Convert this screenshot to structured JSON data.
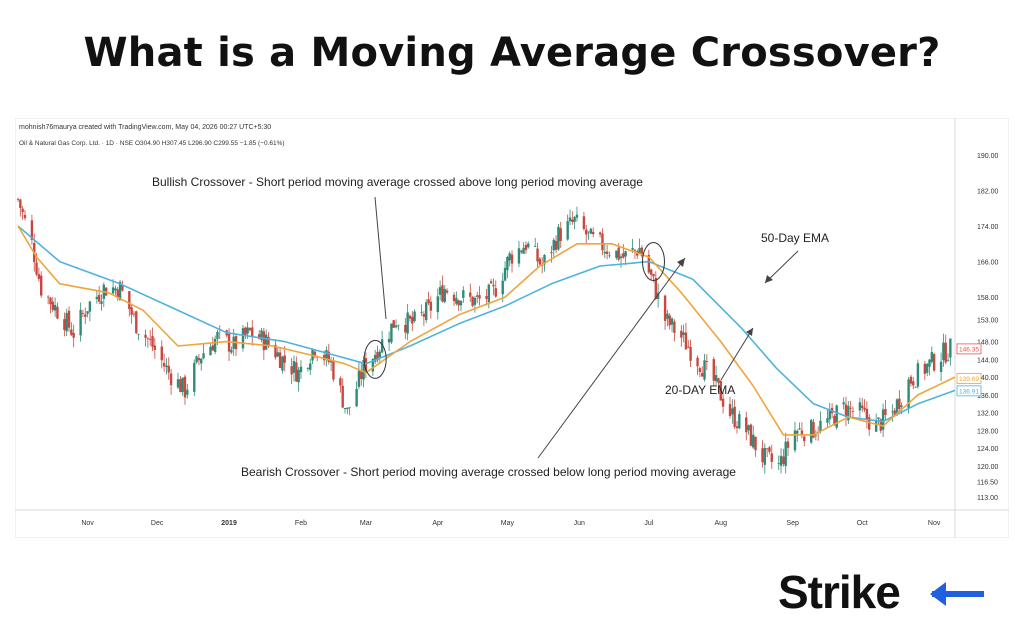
{
  "page": {
    "headline": "What is a Moving Average Crossover?"
  },
  "chart_data": {
    "type": "candlestick",
    "credit": "mohnish76maurya created with TradingView.com, May 04, 2026 00:27 UTC+5:30",
    "symbol_line": "Oil & Natural Gas Corp. Ltd. · 1D · NSE  O304.90  H307.45  L296.90  C299.55  −1.85 (−0.61%)",
    "ylim": [
      111,
      192
    ],
    "xlim": [
      "2018-10-02",
      "2019-11-10"
    ],
    "y_ticks": [
      190.0,
      182.0,
      174.0,
      166.0,
      158.0,
      153.0,
      148.0,
      144.0,
      140.0,
      136.0,
      132.0,
      128.0,
      124.0,
      120.0,
      116.5,
      113.0
    ],
    "y_tick_labels": [
      "190.00",
      "182.00",
      "174.00",
      "166.00",
      "158.00",
      "153.00",
      "148.00",
      "144.00",
      "140.00",
      "136.00",
      "132.00",
      "128.00",
      "124.00",
      "120.00",
      "116.50",
      "113.00"
    ],
    "x_tick_labels": [
      {
        "label": "Nov",
        "date": "2018-11-01",
        "bold": false
      },
      {
        "label": "Dec",
        "date": "2018-12-01",
        "bold": false
      },
      {
        "label": "2019",
        "date": "2019-01-01",
        "bold": true
      },
      {
        "label": "Feb",
        "date": "2019-02-01",
        "bold": false
      },
      {
        "label": "Mar",
        "date": "2019-03-01",
        "bold": false
      },
      {
        "label": "Apr",
        "date": "2019-04-01",
        "bold": false
      },
      {
        "label": "May",
        "date": "2019-05-01",
        "bold": false
      },
      {
        "label": "Jun",
        "date": "2019-06-01",
        "bold": false
      },
      {
        "label": "Jul",
        "date": "2019-07-01",
        "bold": false
      },
      {
        "label": "Aug",
        "date": "2019-08-01",
        "bold": false
      },
      {
        "label": "Sep",
        "date": "2019-09-01",
        "bold": false
      },
      {
        "label": "Oct",
        "date": "2019-10-01",
        "bold": false
      },
      {
        "label": "Nov",
        "date": "2019-11-01",
        "bold": false
      }
    ],
    "close_path": [
      [
        "2018-10-02",
        180
      ],
      [
        "2018-10-08",
        170
      ],
      [
        "2018-10-12",
        160
      ],
      [
        "2018-10-19",
        155
      ],
      [
        "2018-10-26",
        150
      ],
      [
        "2018-11-01",
        156
      ],
      [
        "2018-11-08",
        160
      ],
      [
        "2018-11-15",
        160
      ],
      [
        "2018-11-22",
        152
      ],
      [
        "2018-11-29",
        147
      ],
      [
        "2018-12-06",
        141
      ],
      [
        "2018-12-13",
        137
      ],
      [
        "2018-12-20",
        145
      ],
      [
        "2018-12-27",
        149
      ],
      [
        "2019-01-03",
        147
      ],
      [
        "2019-01-10",
        150
      ],
      [
        "2019-01-17",
        148
      ],
      [
        "2019-01-24",
        144
      ],
      [
        "2019-01-31",
        141
      ],
      [
        "2019-02-07",
        147
      ],
      [
        "2019-02-14",
        143
      ],
      [
        "2019-02-21",
        132
      ],
      [
        "2019-02-28",
        142
      ],
      [
        "2019-03-07",
        147
      ],
      [
        "2019-03-14",
        153
      ],
      [
        "2019-03-21",
        152
      ],
      [
        "2019-03-28",
        155
      ],
      [
        "2019-04-04",
        160
      ],
      [
        "2019-04-11",
        158
      ],
      [
        "2019-04-18",
        157
      ],
      [
        "2019-04-25",
        159
      ],
      [
        "2019-05-02",
        167
      ],
      [
        "2019-05-09",
        170
      ],
      [
        "2019-05-16",
        165
      ],
      [
        "2019-05-23",
        172
      ],
      [
        "2019-05-30",
        175
      ],
      [
        "2019-06-06",
        171
      ],
      [
        "2019-06-13",
        169
      ],
      [
        "2019-06-20",
        167
      ],
      [
        "2019-06-27",
        169
      ],
      [
        "2019-07-03",
        161
      ],
      [
        "2019-07-08",
        153
      ],
      [
        "2019-07-15",
        149
      ],
      [
        "2019-07-22",
        144
      ],
      [
        "2019-07-29",
        139
      ],
      [
        "2019-08-05",
        132
      ],
      [
        "2019-08-12",
        128
      ],
      [
        "2019-08-19",
        122
      ],
      [
        "2019-08-26",
        120
      ],
      [
        "2019-09-02",
        128
      ],
      [
        "2019-09-09",
        128
      ],
      [
        "2019-09-16",
        130
      ],
      [
        "2019-09-23",
        133
      ],
      [
        "2019-09-30",
        132
      ],
      [
        "2019-10-07",
        129
      ],
      [
        "2019-10-14",
        132
      ],
      [
        "2019-10-21",
        139
      ],
      [
        "2019-10-28",
        142
      ],
      [
        "2019-11-04",
        145
      ],
      [
        "2019-11-10",
        147
      ]
    ],
    "series": [
      {
        "name": "50-Day EMA",
        "color": "#4fb3dc",
        "values": [
          [
            "2018-10-02",
            174
          ],
          [
            "2018-10-20",
            166
          ],
          [
            "2018-11-15",
            161
          ],
          [
            "2018-12-10",
            155
          ],
          [
            "2018-12-31",
            150
          ],
          [
            "2019-01-25",
            148
          ],
          [
            "2019-02-15",
            145
          ],
          [
            "2019-03-01",
            143
          ],
          [
            "2019-03-20",
            147
          ],
          [
            "2019-04-10",
            152
          ],
          [
            "2019-04-30",
            156
          ],
          [
            "2019-05-20",
            161
          ],
          [
            "2019-06-10",
            165
          ],
          [
            "2019-07-01",
            166
          ],
          [
            "2019-07-20",
            162
          ],
          [
            "2019-08-10",
            151
          ],
          [
            "2019-08-25",
            142
          ],
          [
            "2019-09-10",
            134
          ],
          [
            "2019-09-25",
            131
          ],
          [
            "2019-10-10",
            130
          ],
          [
            "2019-10-25",
            134
          ],
          [
            "2019-11-10",
            137
          ]
        ]
      },
      {
        "name": "20-DAY EMA",
        "color": "#f0a53c",
        "values": [
          [
            "2018-10-02",
            174
          ],
          [
            "2018-10-10",
            167
          ],
          [
            "2018-10-20",
            161
          ],
          [
            "2018-11-10",
            159
          ],
          [
            "2018-11-25",
            155
          ],
          [
            "2018-12-10",
            147
          ],
          [
            "2018-12-31",
            148
          ],
          [
            "2019-01-20",
            147
          ],
          [
            "2019-02-05",
            145
          ],
          [
            "2019-02-20",
            143
          ],
          [
            "2019-03-01",
            141
          ],
          [
            "2019-03-20",
            148
          ],
          [
            "2019-04-10",
            154
          ],
          [
            "2019-04-30",
            158
          ],
          [
            "2019-05-15",
            165
          ],
          [
            "2019-05-31",
            170
          ],
          [
            "2019-06-15",
            170
          ],
          [
            "2019-07-01",
            167
          ],
          [
            "2019-07-15",
            159
          ],
          [
            "2019-08-01",
            148
          ],
          [
            "2019-08-15",
            138
          ],
          [
            "2019-08-28",
            127
          ],
          [
            "2019-09-10",
            127
          ],
          [
            "2019-09-25",
            131
          ],
          [
            "2019-10-10",
            129
          ],
          [
            "2019-10-25",
            136
          ],
          [
            "2019-11-10",
            140
          ]
        ]
      }
    ],
    "price_tags": [
      {
        "value": 146.35,
        "label": "146.35",
        "color": "#e8534f"
      },
      {
        "value": 139.69,
        "label": "139.69",
        "color": "#f0a53c"
      },
      {
        "value": 136.91,
        "label": "136.91",
        "color": "#4fb3dc"
      }
    ],
    "candle_colors": {
      "up": "#2e8b78",
      "down": "#c8473f"
    },
    "annotations": {
      "bullish": "Bullish Crossover - Short period moving average crossed above long period moving average",
      "bearish": "Bearish Crossover - Short period moving average crossed below long period moving average",
      "ema50": "50-Day EMA",
      "ema20": "20-DAY EMA"
    },
    "crossovers": [
      {
        "type": "bullish",
        "date": "2019-03-05",
        "value": 144
      },
      {
        "type": "bearish",
        "date": "2019-07-03",
        "value": 166
      }
    ]
  },
  "branding": {
    "logo_text": "Strike",
    "logo_color": "#111111",
    "accent_color": "#1f5fe0"
  }
}
